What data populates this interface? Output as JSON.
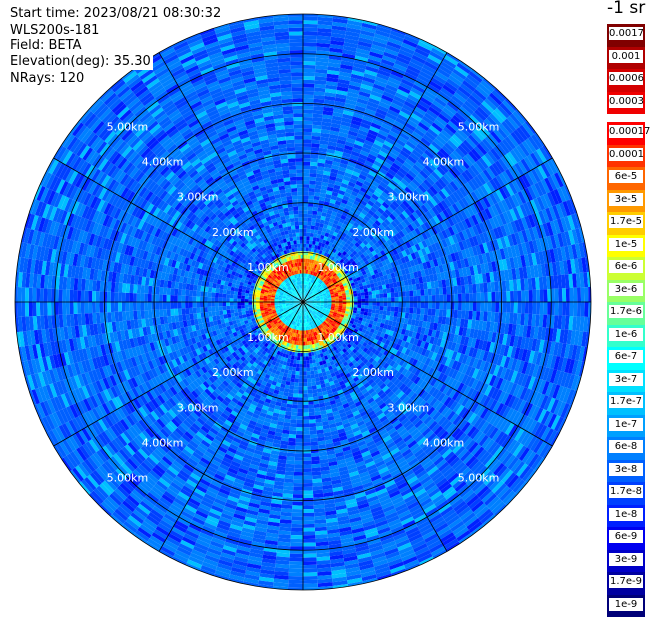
{
  "header": {
    "start_time": "Start time: 2023/08/21 08:30:32",
    "instrument": "WLS200s-181",
    "field": "Field: BETA",
    "elevation_label": "Elevation(deg):",
    "elevation_value": "35.30",
    "nrays": "NRays: 120"
  },
  "colorbar": {
    "title": "-1 sr",
    "top_group": [
      {
        "label": "0.0017",
        "color": "#800000"
      },
      {
        "label": "0.001",
        "color": "#b00000"
      },
      {
        "label": "0.0006",
        "color": "#d40000"
      },
      {
        "label": "0.0003",
        "color": "#f00000"
      }
    ],
    "main_group": [
      {
        "label": "0.00017",
        "color": "#ff0000"
      },
      {
        "label": "0.0001",
        "color": "#ff3300"
      },
      {
        "label": "6e-5",
        "color": "#ff6600"
      },
      {
        "label": "3e-5",
        "color": "#ff9900"
      },
      {
        "label": "1.7e-5",
        "color": "#ffcc00"
      },
      {
        "label": "1e-5",
        "color": "#ffff00"
      },
      {
        "label": "6e-6",
        "color": "#ccff33"
      },
      {
        "label": "3e-6",
        "color": "#99ff66"
      },
      {
        "label": "1.7e-6",
        "color": "#66ff99"
      },
      {
        "label": "1e-6",
        "color": "#33ffcc"
      },
      {
        "label": "6e-7",
        "color": "#00ffff"
      },
      {
        "label": "3e-7",
        "color": "#00e0ff"
      },
      {
        "label": "1.7e-7",
        "color": "#00c0ff"
      },
      {
        "label": "1e-7",
        "color": "#00a0ff"
      },
      {
        "label": "6e-8",
        "color": "#0080ff"
      },
      {
        "label": "3e-8",
        "color": "#0060ff"
      },
      {
        "label": "1.7e-8",
        "color": "#0040ff"
      },
      {
        "label": "1e-8",
        "color": "#0020ff"
      },
      {
        "label": "6e-9",
        "color": "#0000f0"
      },
      {
        "label": "3e-9",
        "color": "#0000c8"
      },
      {
        "label": "1.7e-9",
        "color": "#0000a0"
      },
      {
        "label": "1e-9",
        "color": "#000078"
      }
    ]
  },
  "chart_data": {
    "type": "heatmap",
    "projection": "polar (PPI)",
    "ring_radii_km": [
      1.0,
      2.0,
      3.0,
      4.0,
      5.0
    ],
    "ring_labels": [
      "1.00km",
      "2.00km",
      "3.00km",
      "4.00km",
      "5.00km"
    ],
    "max_range_km": 5.8,
    "azimuth_spokes_deg": [
      0,
      30,
      60,
      90,
      120,
      150,
      180,
      210,
      240,
      270,
      300,
      330
    ],
    "label_azimuths_deg": [
      45,
      135,
      225,
      315
    ],
    "pattern": {
      "background_value": "~3e-8",
      "near_center_value": "~1e-7",
      "ring_peak_range_km": 0.7,
      "ring_peak_value": "~0.0003"
    }
  }
}
